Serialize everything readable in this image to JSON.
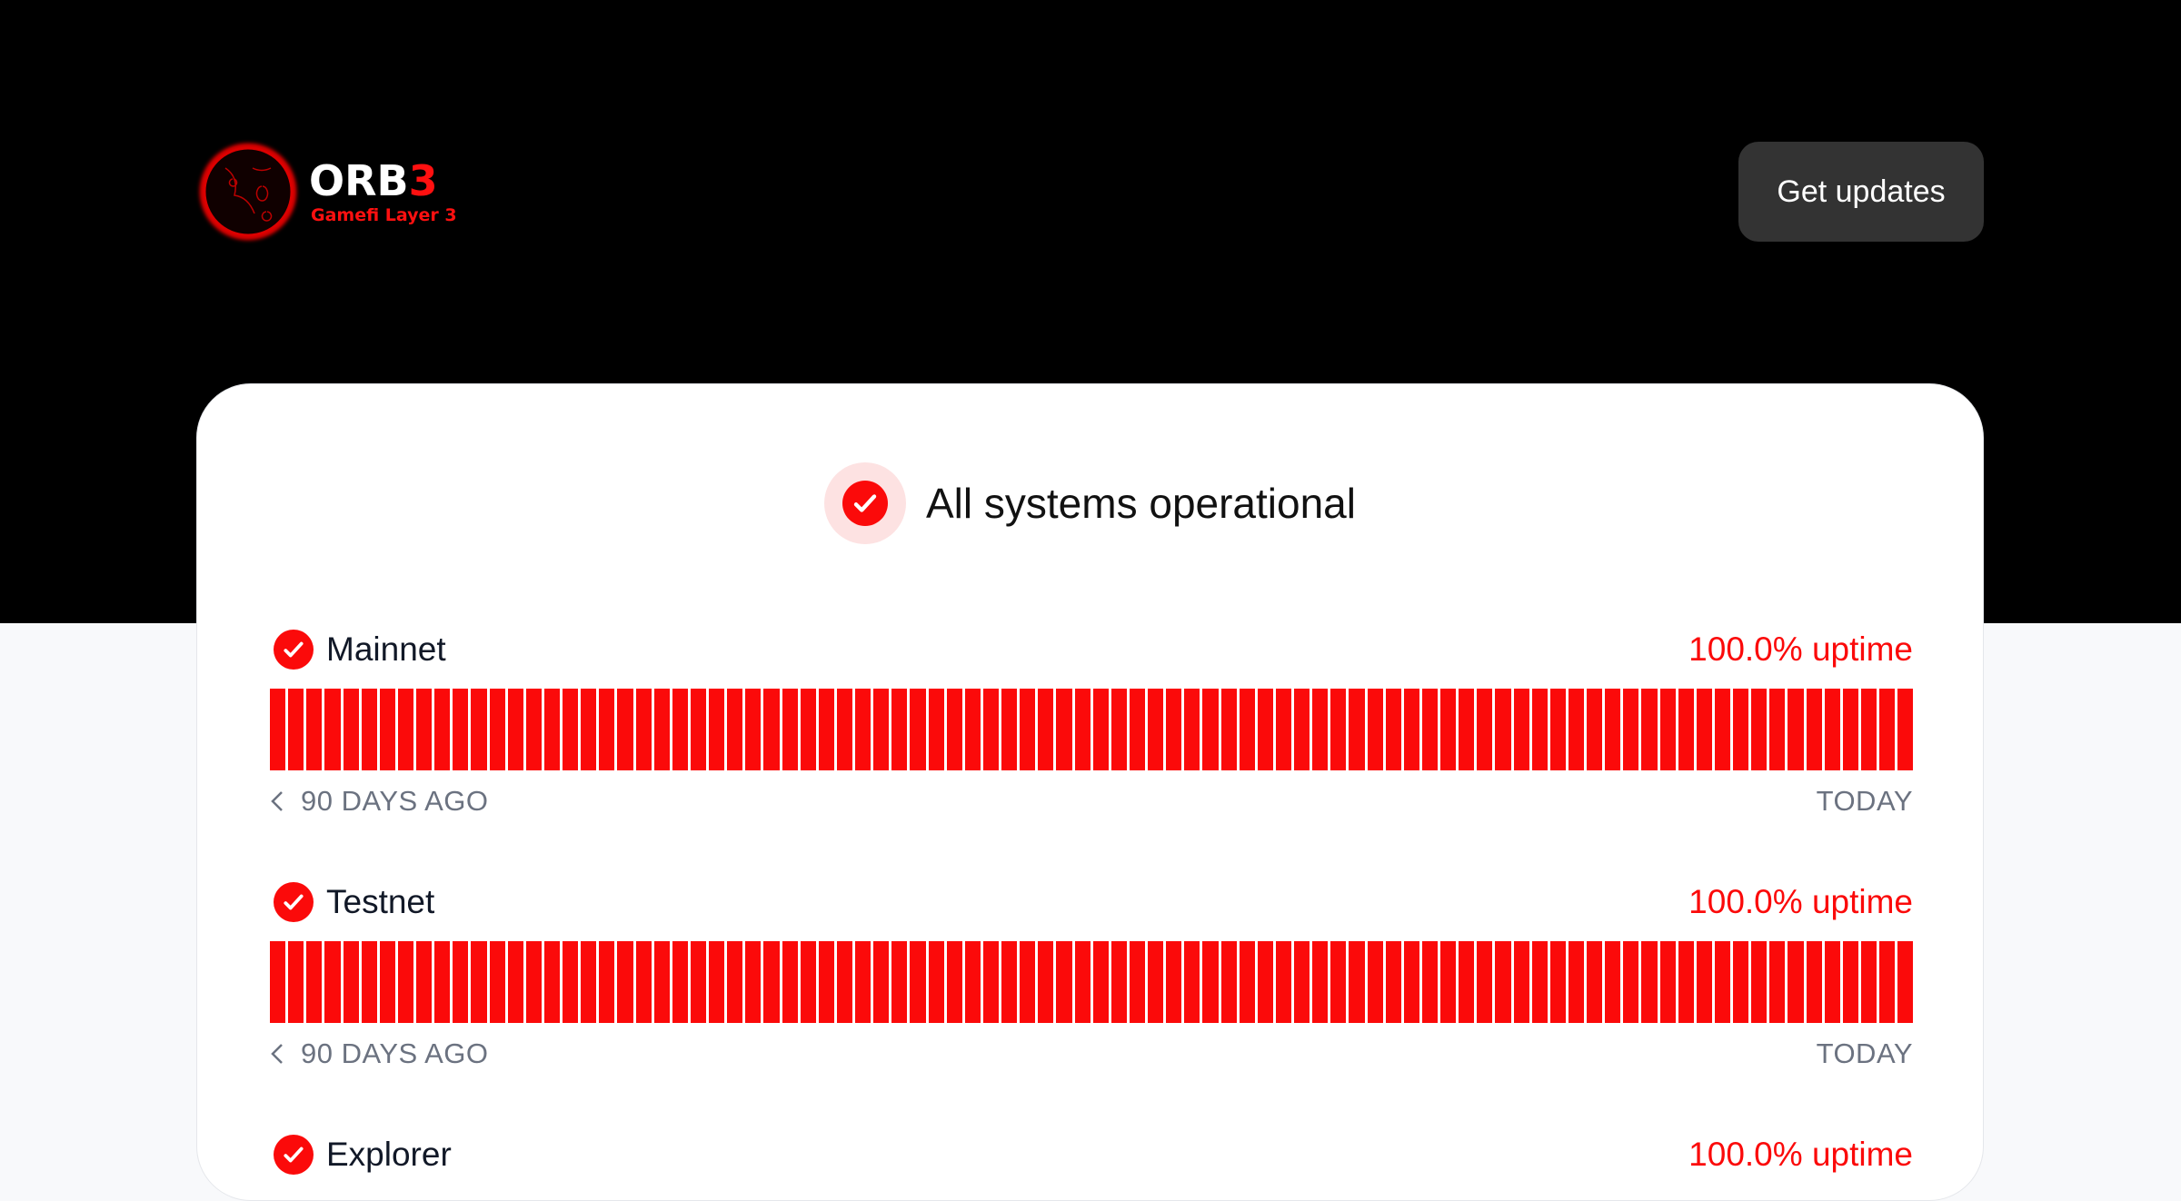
{
  "header": {
    "logo_text": "ORB3",
    "logo_tagline": "Gamefi Layer 3",
    "get_updates_label": "Get updates"
  },
  "status": {
    "text": "All systems operational",
    "icon": "check-circle-icon"
  },
  "colors": {
    "accent": "#fb0a0a",
    "header_bg": "#000000",
    "button_bg": "#333333"
  },
  "services": [
    {
      "name": "Mainnet",
      "uptime": "100.0% uptime",
      "days": 90,
      "operational_days": 90,
      "start_label": "90 DAYS AGO",
      "end_label": "TODAY"
    },
    {
      "name": "Testnet",
      "uptime": "100.0% uptime",
      "days": 90,
      "operational_days": 90,
      "start_label": "90 DAYS AGO",
      "end_label": "TODAY"
    },
    {
      "name": "Explorer",
      "uptime": "100.0% uptime"
    }
  ]
}
